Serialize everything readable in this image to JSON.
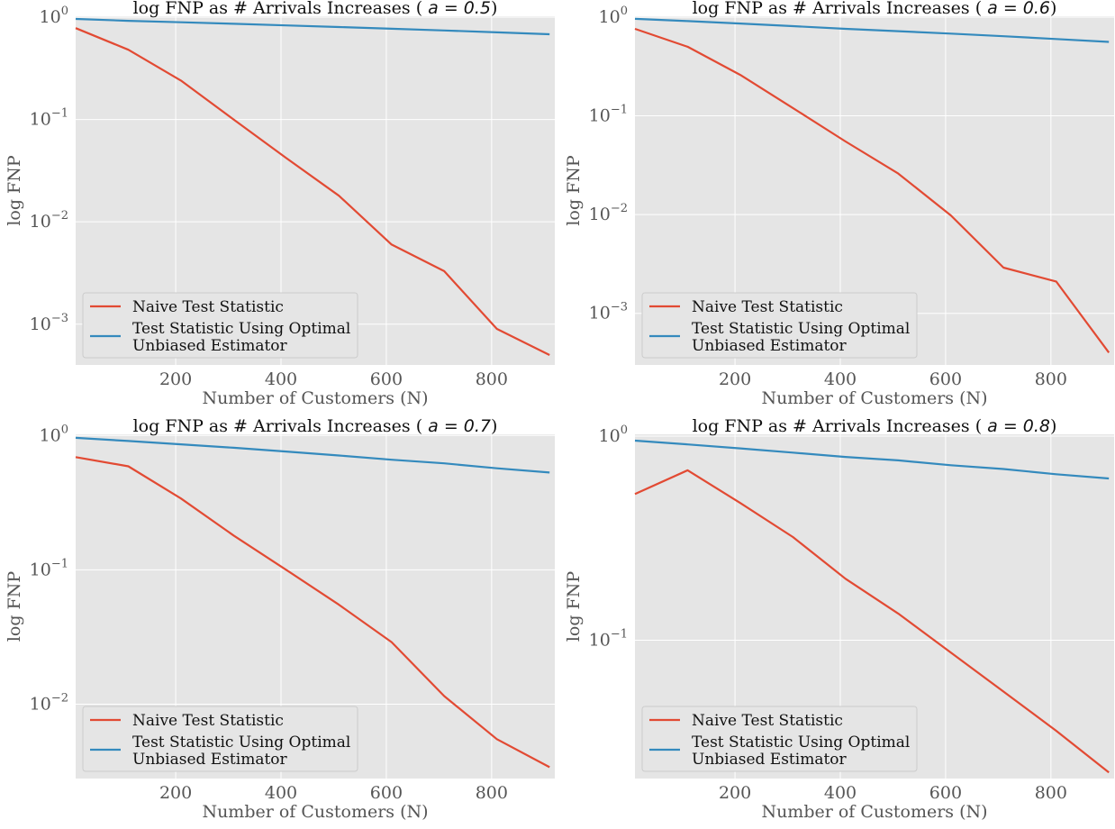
{
  "colors": {
    "plot_bg": "#e5e5e5",
    "grid": "#ffffff",
    "naive": "#e24a33",
    "optimal": "#348abd",
    "legend_bg": "#e5e5e5",
    "legend_border": "#cccccc"
  },
  "chart_data": [
    {
      "type": "line",
      "title_prefix": "log FNP as # Arrivals Increases ( ",
      "title_param": "a = 0.5",
      "title_suffix": ")",
      "xlabel": "Number of Customers (N)",
      "ylabel": "log FNP",
      "yscale": "log",
      "xlim": [
        10,
        920
      ],
      "ylim": [
        0.0004,
        1.02
      ],
      "xticks": [
        200,
        400,
        600,
        800
      ],
      "xtick_labels": [
        "200",
        "400",
        "600",
        "800"
      ],
      "yticks": [
        {
          "value": 1,
          "base": "10",
          "exp": "0"
        },
        {
          "value": 0.1,
          "base": "10",
          "exp": "−1"
        },
        {
          "value": 0.01,
          "base": "10",
          "exp": "−2"
        },
        {
          "value": 0.001,
          "base": "10",
          "exp": "−3"
        }
      ],
      "grid": true,
      "legend_loc": "lower left",
      "x": [
        10,
        110,
        210,
        310,
        410,
        510,
        610,
        710,
        810,
        910
      ],
      "series": [
        {
          "name": "Naive Test Statistic",
          "values": [
            0.78,
            0.48,
            0.24,
            0.1,
            0.042,
            0.018,
            0.006,
            0.0033,
            0.0009,
            0.0005
          ]
        },
        {
          "name": "Test Statistic Using Optimal Unbiased Estimator",
          "legend_lines": [
            "Test Statistic Using Optimal",
            "Unbiased Estimator"
          ],
          "values": [
            0.96,
            0.92,
            0.89,
            0.86,
            0.83,
            0.8,
            0.77,
            0.74,
            0.71,
            0.68
          ]
        }
      ]
    },
    {
      "type": "line",
      "title_prefix": "log FNP as # Arrivals Increases ( ",
      "title_param": "a = 0.6",
      "title_suffix": ")",
      "xlabel": "Number of Customers (N)",
      "ylabel": "log FNP",
      "yscale": "log",
      "xlim": [
        10,
        920
      ],
      "ylim": [
        0.0003,
        1.02
      ],
      "xticks": [
        200,
        400,
        600,
        800
      ],
      "xtick_labels": [
        "200",
        "400",
        "600",
        "800"
      ],
      "yticks": [
        {
          "value": 1,
          "base": "10",
          "exp": "0"
        },
        {
          "value": 0.1,
          "base": "10",
          "exp": "−1"
        },
        {
          "value": 0.01,
          "base": "10",
          "exp": "−2"
        },
        {
          "value": 0.001,
          "base": "10",
          "exp": "−3"
        }
      ],
      "grid": true,
      "legend_loc": "lower left",
      "x": [
        10,
        110,
        210,
        310,
        410,
        510,
        610,
        710,
        810,
        910
      ],
      "series": [
        {
          "name": "Naive Test Statistic",
          "values": [
            0.76,
            0.5,
            0.26,
            0.12,
            0.055,
            0.026,
            0.0098,
            0.0029,
            0.0021,
            0.0004
          ]
        },
        {
          "name": "Test Statistic Using Optimal Unbiased Estimator",
          "legend_lines": [
            "Test Statistic Using Optimal",
            "Unbiased Estimator"
          ],
          "values": [
            0.96,
            0.91,
            0.86,
            0.81,
            0.76,
            0.72,
            0.68,
            0.64,
            0.6,
            0.56
          ]
        }
      ]
    },
    {
      "type": "line",
      "title_prefix": "log FNP as # Arrivals Increases ( ",
      "title_param": "a = 0.7",
      "title_suffix": ")",
      "xlabel": "Number of Customers (N)",
      "ylabel": "log FNP",
      "yscale": "log",
      "xlim": [
        10,
        920
      ],
      "ylim": [
        0.0028,
        1.02
      ],
      "xticks": [
        200,
        400,
        600,
        800
      ],
      "xtick_labels": [
        "200",
        "400",
        "600",
        "800"
      ],
      "yticks": [
        {
          "value": 1,
          "base": "10",
          "exp": "0"
        },
        {
          "value": 0.1,
          "base": "10",
          "exp": "−1"
        },
        {
          "value": 0.01,
          "base": "10",
          "exp": "−2"
        }
      ],
      "grid": true,
      "legend_loc": "lower left",
      "x": [
        10,
        110,
        210,
        310,
        410,
        510,
        610,
        710,
        810,
        910
      ],
      "series": [
        {
          "name": "Naive Test Statistic",
          "values": [
            0.69,
            0.59,
            0.34,
            0.18,
            0.1,
            0.055,
            0.029,
            0.0115,
            0.0055,
            0.0034
          ]
        },
        {
          "name": "Test Statistic Using Optimal Unbiased Estimator",
          "legend_lines": [
            "Test Statistic Using Optimal",
            "Unbiased Estimator"
          ],
          "values": [
            0.96,
            0.91,
            0.86,
            0.81,
            0.76,
            0.71,
            0.66,
            0.62,
            0.57,
            0.53
          ]
        }
      ]
    },
    {
      "type": "line",
      "title_prefix": "log FNP as # Arrivals Increases ( ",
      "title_param": "a = 0.8",
      "title_suffix": ")",
      "xlabel": "Number of Customers (N)",
      "ylabel": "log FNP",
      "yscale": "log",
      "xlim": [
        10,
        920
      ],
      "ylim": [
        0.021,
        1.02
      ],
      "xticks": [
        200,
        400,
        600,
        800
      ],
      "xtick_labels": [
        "200",
        "400",
        "600",
        "800"
      ],
      "yticks": [
        {
          "value": 1,
          "base": "10",
          "exp": "0"
        },
        {
          "value": 0.1,
          "base": "10",
          "exp": "−1"
        }
      ],
      "grid": true,
      "legend_loc": "lower left",
      "x": [
        10,
        110,
        210,
        310,
        410,
        510,
        610,
        710,
        810,
        910
      ],
      "series": [
        {
          "name": "Naive Test Statistic",
          "values": [
            0.52,
            0.68,
            0.47,
            0.32,
            0.2,
            0.135,
            0.087,
            0.056,
            0.036,
            0.0225
          ]
        },
        {
          "name": "Test Statistic Using Optimal Unbiased Estimator",
          "legend_lines": [
            "Test Statistic Using Optimal",
            "Unbiased Estimator"
          ],
          "values": [
            0.95,
            0.91,
            0.87,
            0.83,
            0.79,
            0.76,
            0.72,
            0.69,
            0.65,
            0.62
          ]
        }
      ]
    }
  ]
}
